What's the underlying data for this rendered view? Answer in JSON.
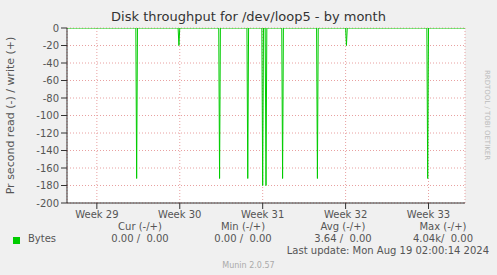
{
  "chart_data": {
    "type": "line",
    "title": "Disk throughput for /dev/loop5 - by month",
    "y_label": "Pr second read (-) / write (+)",
    "x": [
      28.64,
      29.47,
      29.48,
      29.49,
      29.98,
      29.99,
      30,
      30.47,
      30.48,
      30.49,
      30.81,
      30.82,
      30.83,
      30.99,
      31,
      31.01,
      31.03,
      31.04,
      31.05,
      31.23,
      31.24,
      31.25,
      31.65,
      31.66,
      31.67,
      32,
      32.01,
      32.02,
      32.98,
      32.99,
      33,
      33.44
    ],
    "series": [
      {
        "name": "Bytes",
        "color": "#00cc00",
        "values": [
          0,
          0,
          -172,
          0,
          0,
          -20,
          0,
          0,
          -172,
          0,
          0,
          -172,
          0,
          0,
          -180,
          0,
          0,
          -180,
          0,
          0,
          -172,
          0,
          0,
          -172,
          0,
          0,
          -20,
          0,
          0,
          -172,
          0,
          0
        ]
      }
    ],
    "xlim": [
      28.64,
      33.44
    ],
    "xticks": [
      {
        "value": 29,
        "label": "Week 29"
      },
      {
        "value": 30,
        "label": "Week 30"
      },
      {
        "value": 31,
        "label": "Week 31"
      },
      {
        "value": 32,
        "label": "Week 32"
      },
      {
        "value": 33,
        "label": "Week 33"
      }
    ],
    "ylim": [
      -200,
      0
    ],
    "yticks": [
      0,
      -20,
      -40,
      -60,
      -80,
      -100,
      -120,
      -140,
      -160,
      -180,
      -200
    ],
    "grid": true,
    "summary": {
      "columns": [
        "Cur (-/+)",
        "Min (-/+)",
        "Avg (-/+)",
        "Max (-/+)"
      ],
      "rows": [
        [
          "0.00 /  0.00",
          "0.00 /  0.00",
          "3.64 /  0.00",
          "4.04k/  0.00"
        ]
      ]
    },
    "footer": "Last update: Mon Aug 19 02:00:14 2024",
    "credit": "Munin 2.0.57",
    "watermark": "RRDTOOL / TOBI OETIKER"
  }
}
